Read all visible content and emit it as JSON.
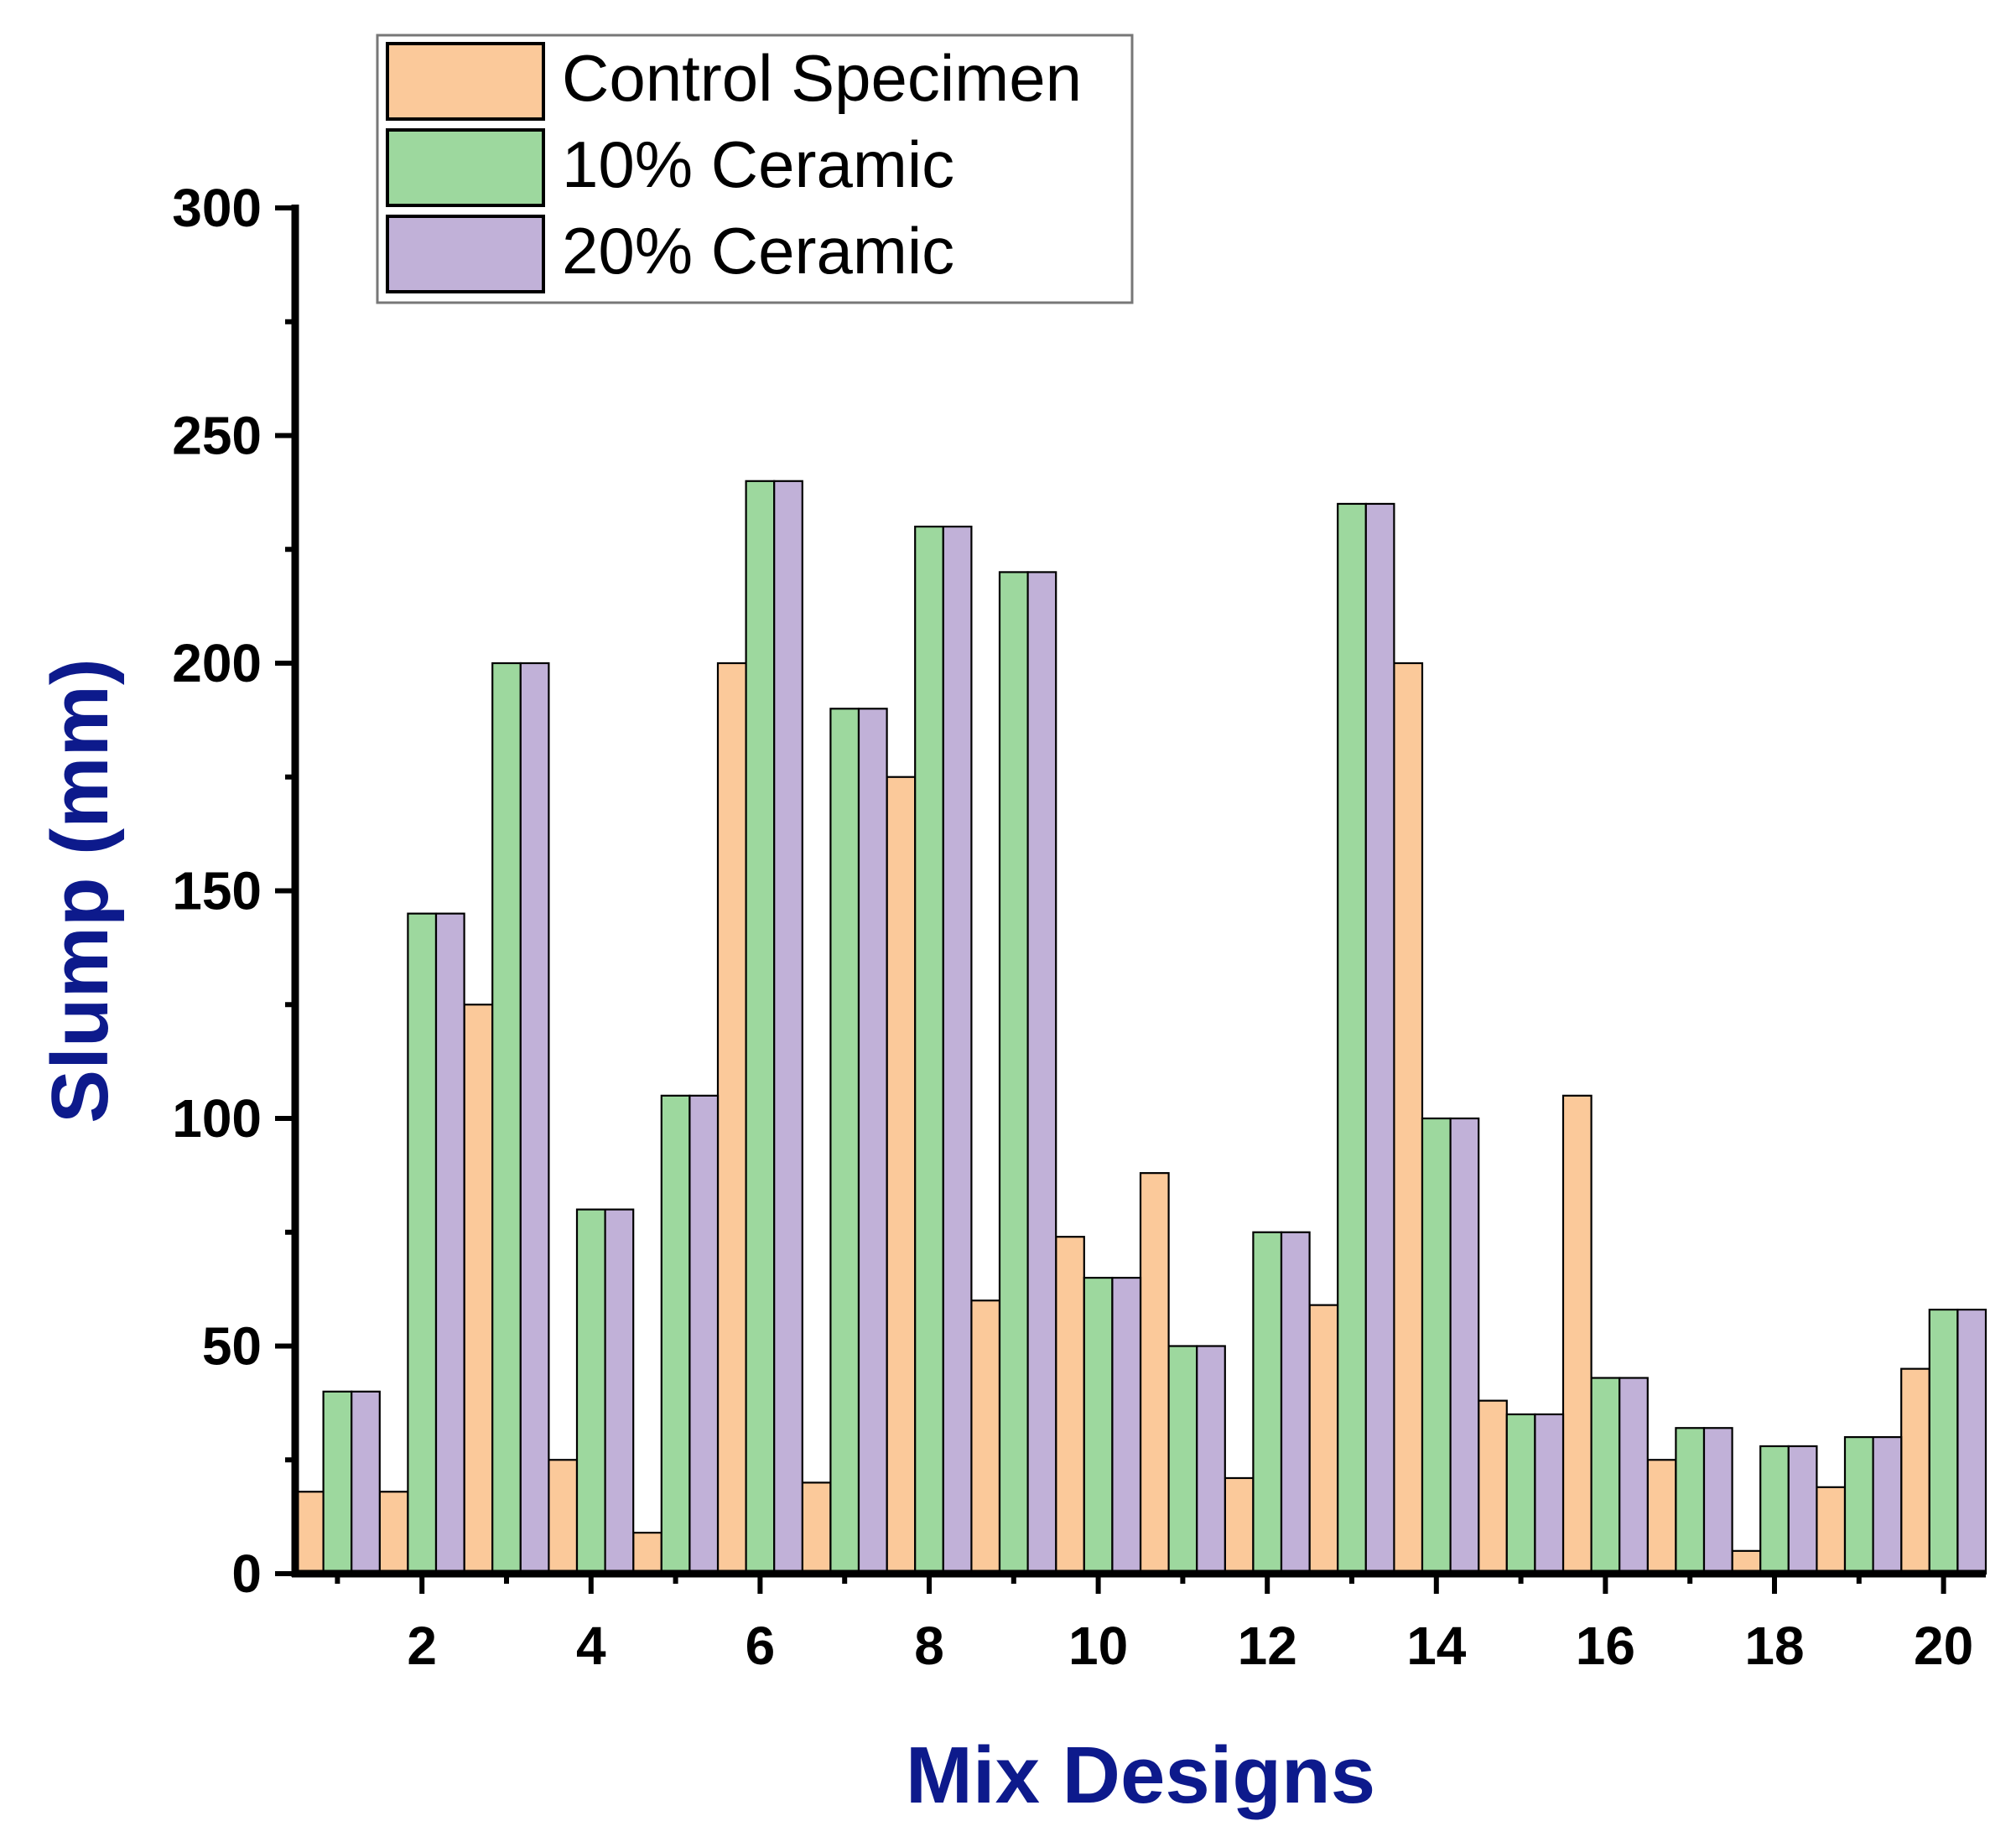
{
  "chart_data": {
    "type": "bar",
    "title": "",
    "xlabel": "Mix Designs",
    "ylabel": "Slump (mm)",
    "ylim": [
      0,
      300
    ],
    "xlim": [
      0.5,
      20.5
    ],
    "yticks": [
      0,
      50,
      100,
      150,
      200,
      250,
      300
    ],
    "xticks": [
      2,
      4,
      6,
      8,
      10,
      12,
      14,
      16,
      18,
      20
    ],
    "categories": [
      1,
      2,
      3,
      4,
      5,
      6,
      7,
      8,
      9,
      10,
      11,
      12,
      13,
      14,
      15,
      16,
      17,
      18,
      19,
      20
    ],
    "legend_position": "top-left",
    "axis_title_color": "#0d1a8c",
    "series": [
      {
        "name": "Control Specimen",
        "color": "#fbc99a",
        "values": [
          18,
          18,
          125,
          25,
          9,
          200,
          20,
          175,
          60,
          74,
          88,
          21,
          59,
          200,
          38,
          105,
          25,
          5,
          19,
          45
        ]
      },
      {
        "name": "10% Ceramic",
        "color": "#9dd89e",
        "values": [
          40,
          145,
          200,
          80,
          105,
          240,
          190,
          230,
          220,
          65,
          50,
          75,
          235,
          100,
          35,
          43,
          32,
          28,
          30,
          58
        ]
      },
      {
        "name": "20% Ceramic",
        "color": "#c1b1d8",
        "values": [
          40,
          145,
          200,
          80,
          105,
          240,
          190,
          230,
          220,
          65,
          50,
          75,
          235,
          100,
          35,
          43,
          32,
          28,
          30,
          58
        ]
      }
    ]
  }
}
